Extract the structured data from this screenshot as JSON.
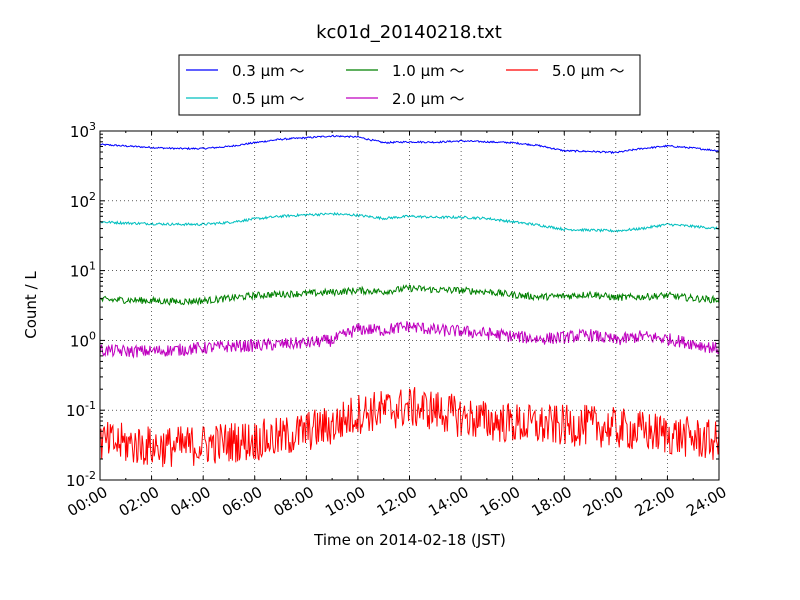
{
  "chart_data": {
    "type": "line",
    "title": "kc01d_20140218.txt",
    "xlabel": "Time on 2014-02-18 (JST)",
    "ylabel": "Count / L",
    "yscale": "log",
    "ylim": [
      0.01,
      1000
    ],
    "xlim_hours": [
      0,
      24
    ],
    "grid": true,
    "legend_position": "top-center",
    "x_tick_labels": [
      "00:00",
      "02:00",
      "04:00",
      "06:00",
      "08:00",
      "10:00",
      "12:00",
      "14:00",
      "16:00",
      "18:00",
      "20:00",
      "22:00",
      "24:00"
    ],
    "y_tick_labels": [
      {
        "base": "10",
        "exp": "-2"
      },
      {
        "base": "10",
        "exp": "-1"
      },
      {
        "base": "10",
        "exp": "0"
      },
      {
        "base": "10",
        "exp": "1"
      },
      {
        "base": "10",
        "exp": "2"
      },
      {
        "base": "10",
        "exp": "3"
      }
    ],
    "x_hours": [
      0,
      1,
      2,
      3,
      4,
      5,
      6,
      7,
      8,
      9,
      10,
      11,
      12,
      13,
      14,
      15,
      16,
      17,
      18,
      19,
      20,
      21,
      22,
      23,
      24
    ],
    "series": [
      {
        "name": "0.3 μm ～",
        "color": "#0000ff",
        "values": [
          640,
          610,
          580,
          560,
          560,
          600,
          680,
          760,
          800,
          850,
          820,
          680,
          700,
          690,
          720,
          700,
          680,
          620,
          520,
          510,
          490,
          560,
          610,
          570,
          520
        ]
      },
      {
        "name": "0.5 μm ～",
        "color": "#00bfbf",
        "values": [
          50,
          48,
          47,
          46,
          46,
          49,
          55,
          60,
          63,
          65,
          62,
          56,
          60,
          58,
          58,
          56,
          50,
          45,
          39,
          38,
          37,
          40,
          46,
          43,
          40
        ]
      },
      {
        "name": "1.0 μm ～",
        "color": "#008000",
        "values": [
          3.8,
          3.8,
          3.7,
          3.6,
          3.7,
          4.0,
          4.4,
          4.6,
          4.7,
          4.9,
          5.2,
          5.0,
          5.6,
          5.3,
          5.2,
          5.0,
          4.5,
          4.2,
          4.3,
          4.6,
          4.1,
          4.2,
          4.4,
          4.0,
          3.8
        ]
      },
      {
        "name": "2.0 μm ～",
        "color": "#bf00bf",
        "values": [
          0.72,
          0.7,
          0.7,
          0.73,
          0.78,
          0.82,
          0.84,
          0.88,
          0.92,
          1.0,
          1.45,
          1.4,
          1.6,
          1.4,
          1.35,
          1.25,
          1.15,
          1.05,
          1.1,
          1.2,
          1.0,
          1.15,
          1.05,
          0.9,
          0.75
        ]
      },
      {
        "name": "5.0 μm ～",
        "color": "#ff0000",
        "values": [
          0.035,
          0.033,
          0.03,
          0.03,
          0.032,
          0.035,
          0.037,
          0.04,
          0.05,
          0.06,
          0.09,
          0.1,
          0.11,
          0.1,
          0.08,
          0.07,
          0.065,
          0.06,
          0.06,
          0.06,
          0.055,
          0.05,
          0.045,
          0.04,
          0.035
        ]
      }
    ]
  }
}
